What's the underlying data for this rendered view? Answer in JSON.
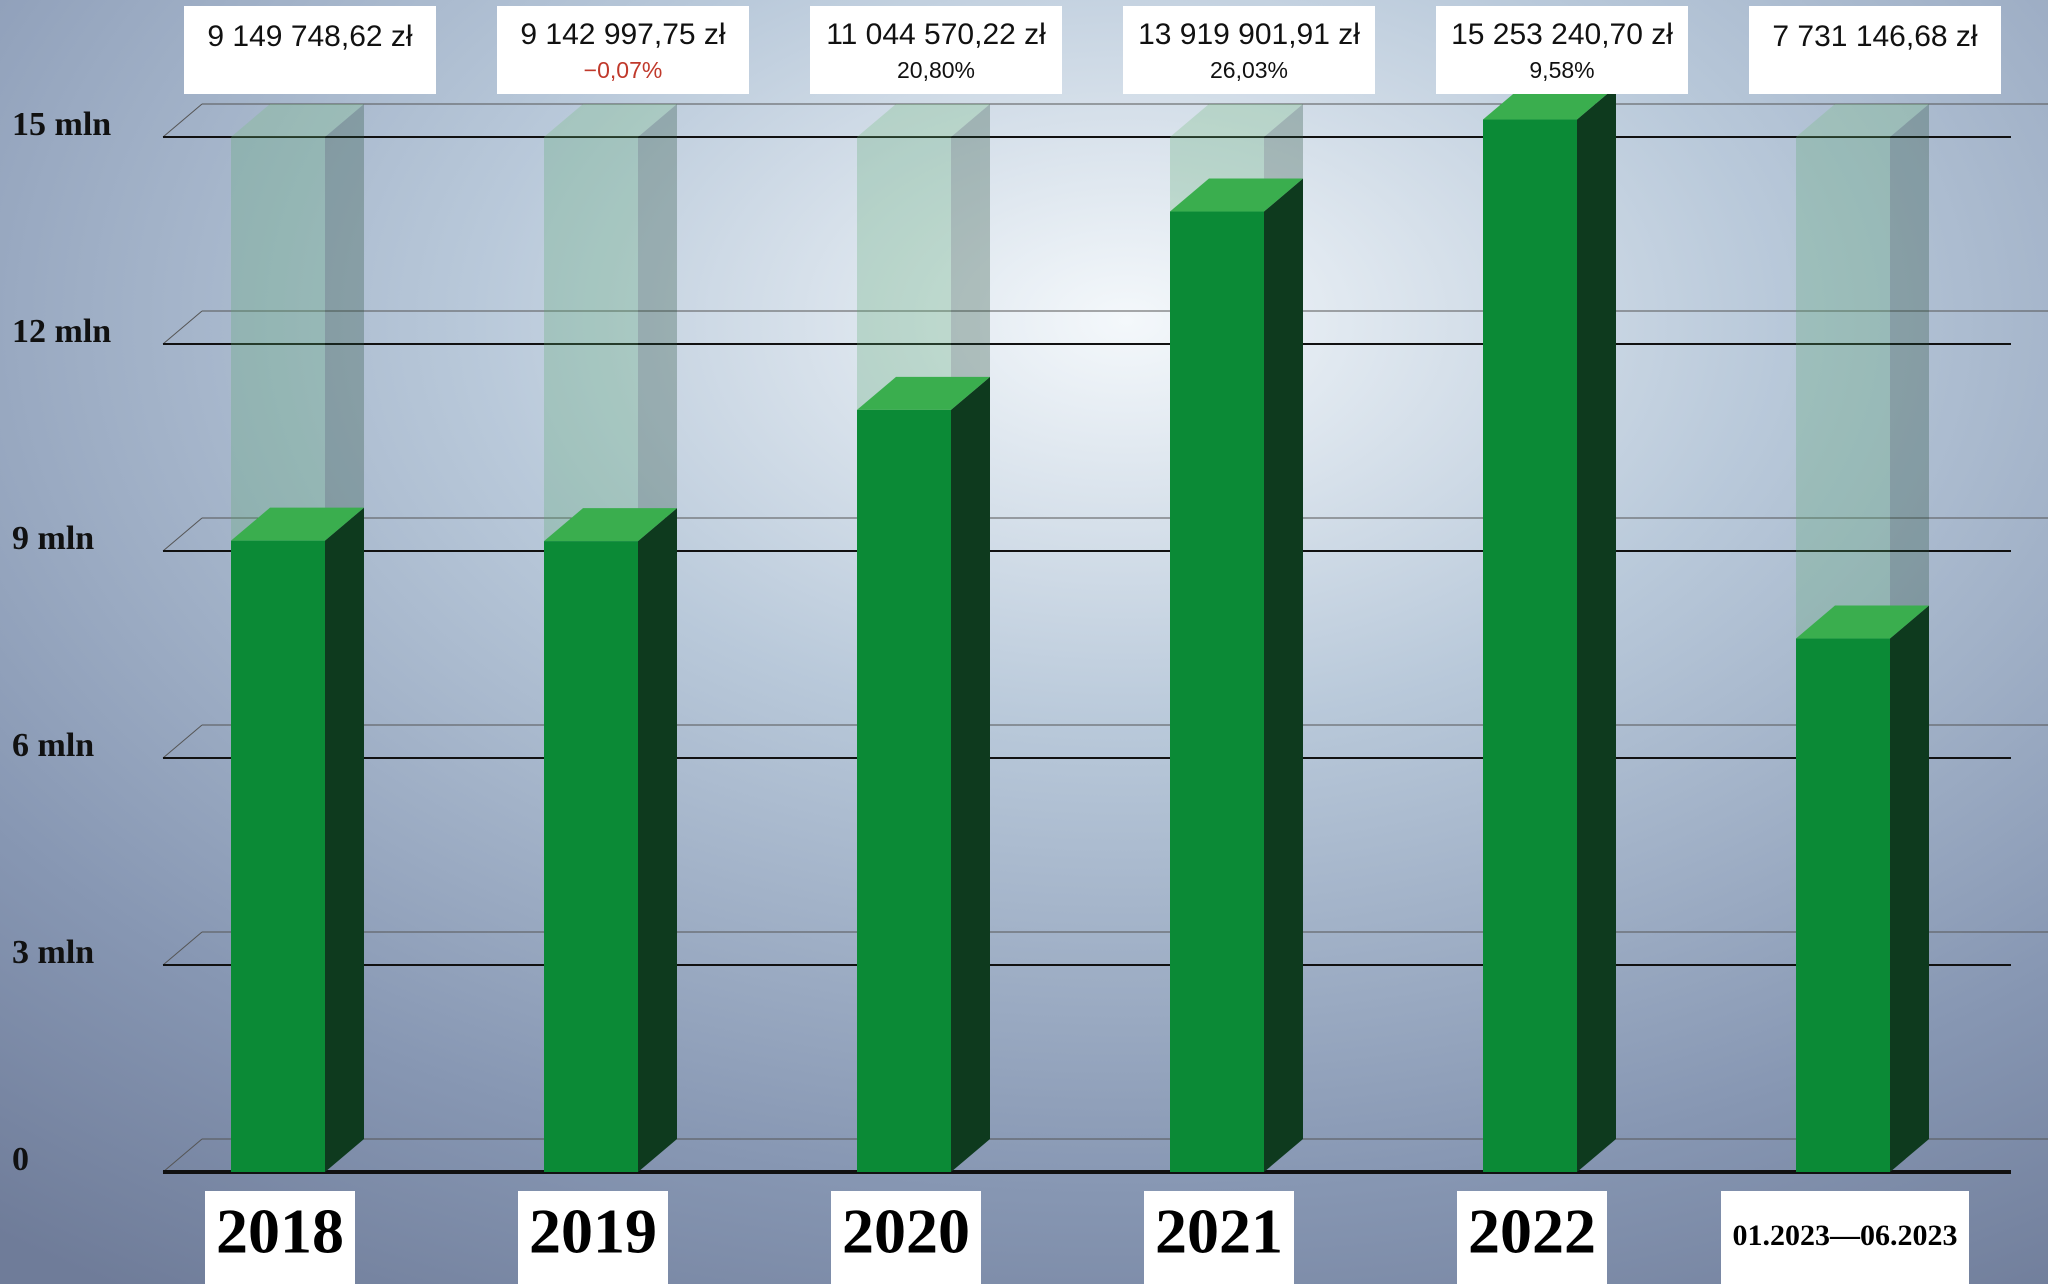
{
  "chart_data": {
    "type": "bar3d",
    "categories": [
      "2018",
      "2019",
      "2020",
      "2021",
      "2022",
      "01.2023—06.2023"
    ],
    "values": [
      9149748.62,
      9142997.75,
      11044570.22,
      13919901.91,
      15253240.7,
      7731146.68
    ],
    "value_labels": [
      "9 149 748,62 zł",
      "9 142 997,75 zł",
      "11 044 570,22 zł",
      "13 919 901,91 zł",
      "15 253 240,70 zł",
      "7 731 146,68 zł"
    ],
    "change_labels": [
      null,
      "−0,07%",
      "20,80%",
      "26,03%",
      "9,58%",
      null
    ],
    "color": "#0b8a36",
    "ylim": [
      0,
      15000000
    ],
    "yticks": [
      0,
      {
        "value": 3000000,
        "label": "3 mln"
      },
      {
        "value": 6000000,
        "label": "6 mln"
      },
      {
        "value": 9000000,
        "label": "9 mln"
      },
      {
        "value": 12000000,
        "label": "12 mln"
      },
      {
        "value": 15000000,
        "label": "15 mln"
      }
    ],
    "grid": true
  }
}
